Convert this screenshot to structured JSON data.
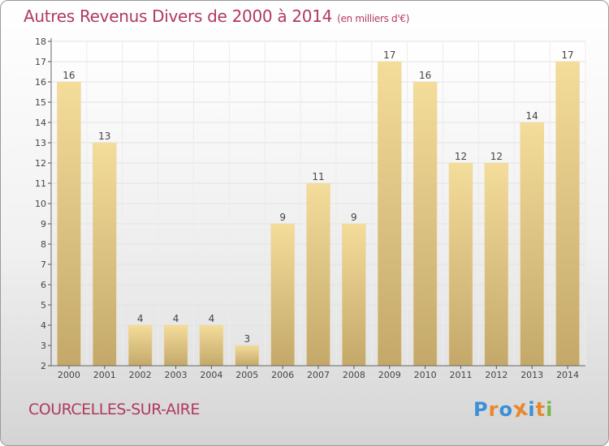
{
  "chart_data": {
    "type": "bar",
    "title": "Autres Revenus Divers de 2000 à 2014",
    "unit_note": "(en milliers d'€)",
    "categories": [
      "2000",
      "2001",
      "2002",
      "2003",
      "2004",
      "2005",
      "2006",
      "2007",
      "2008",
      "2009",
      "2010",
      "2011",
      "2012",
      "2013",
      "2014"
    ],
    "values": [
      16,
      13,
      4,
      4,
      4,
      3,
      9,
      11,
      9,
      17,
      16,
      12,
      12,
      14,
      17
    ],
    "ylim": [
      2,
      18
    ],
    "yticks": [
      2,
      3,
      4,
      5,
      6,
      7,
      8,
      9,
      10,
      11,
      12,
      13,
      14,
      15,
      16,
      17,
      18
    ],
    "grid": true,
    "bar_color_top": "#f4dc9a",
    "bar_color_bottom": "#c3a86a"
  },
  "footer": {
    "commune": "COURCELLES-SUR-AIRE"
  },
  "logo": {
    "text": "Proxiti",
    "letter_colors": [
      "#3a8fd6",
      "#e8872e",
      "#3a8fd6",
      "#e8872e",
      "#3a8fd6",
      "#e8872e",
      "#7ab648"
    ]
  },
  "colors": {
    "accent": "#b03a5e"
  }
}
